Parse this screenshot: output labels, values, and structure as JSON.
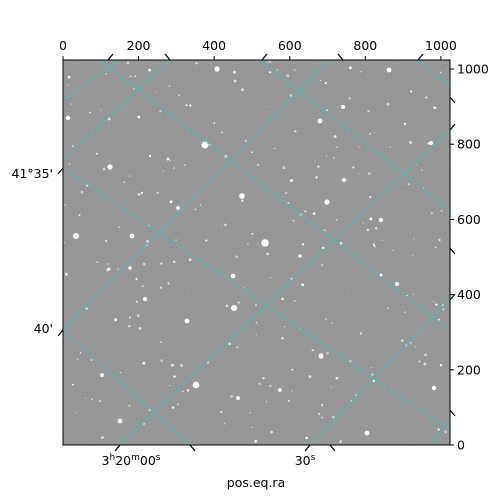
{
  "figure": {
    "xlabel": "pos.eq.ra",
    "top_ticks": [
      "0",
      "200",
      "400",
      "600",
      "800",
      "1000"
    ],
    "right_ticks": [
      "0",
      "200",
      "400",
      "600",
      "800",
      "1000"
    ],
    "dec_ticks": [
      "41°35'",
      "40'"
    ],
    "ra_ticks": [
      {
        "main": "3",
        "h": "h",
        "m_val": "20",
        "m": "m",
        "s_val": "00",
        "s": "s"
      },
      {
        "main": "",
        "h": "",
        "m_val": "",
        "m": "",
        "s_val": "30",
        "s": "s"
      }
    ],
    "colors": {
      "grid": "#35c8c8",
      "image_background": "#6e6e6e",
      "star": "#ffffff",
      "frame": "#000000"
    },
    "pixel_range": [
      0,
      1024
    ]
  }
}
